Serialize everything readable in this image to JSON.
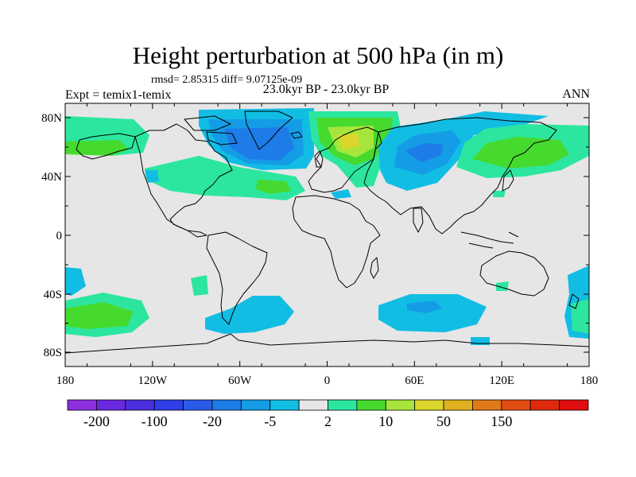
{
  "title": "Height perturbation at 500 hPa (in m)",
  "stats": "rmsd= 2.85315 diff= 9.07125e-09",
  "expt": "Expt = temix1-temix",
  "period": "23.0kyr BP - 23.0kyr BP",
  "season": "ANN",
  "map": {
    "lat_ticks": [
      "80N",
      "40N",
      "0",
      "40S",
      "80S"
    ],
    "lon_ticks": [
      "180",
      "120W",
      "60W",
      "0",
      "60E",
      "120E",
      "180"
    ],
    "background_color": "#e6e6e6",
    "coastline_color": "#000000"
  },
  "colorbar": {
    "colors": [
      "#8c30e0",
      "#6a28e0",
      "#4b2ee0",
      "#2f3ee6",
      "#2a5ae8",
      "#1e7ce8",
      "#149ce6",
      "#12bde4",
      "#e6e6e6",
      "#2ce6a0",
      "#46da2e",
      "#a6e63c",
      "#dcd62c",
      "#e0b020",
      "#e07a18",
      "#e04e12",
      "#e02a0e",
      "#e00e0e"
    ],
    "labels": [
      "-200",
      "-100",
      "-20",
      "-5",
      "2",
      "10",
      "50",
      "150"
    ]
  }
}
